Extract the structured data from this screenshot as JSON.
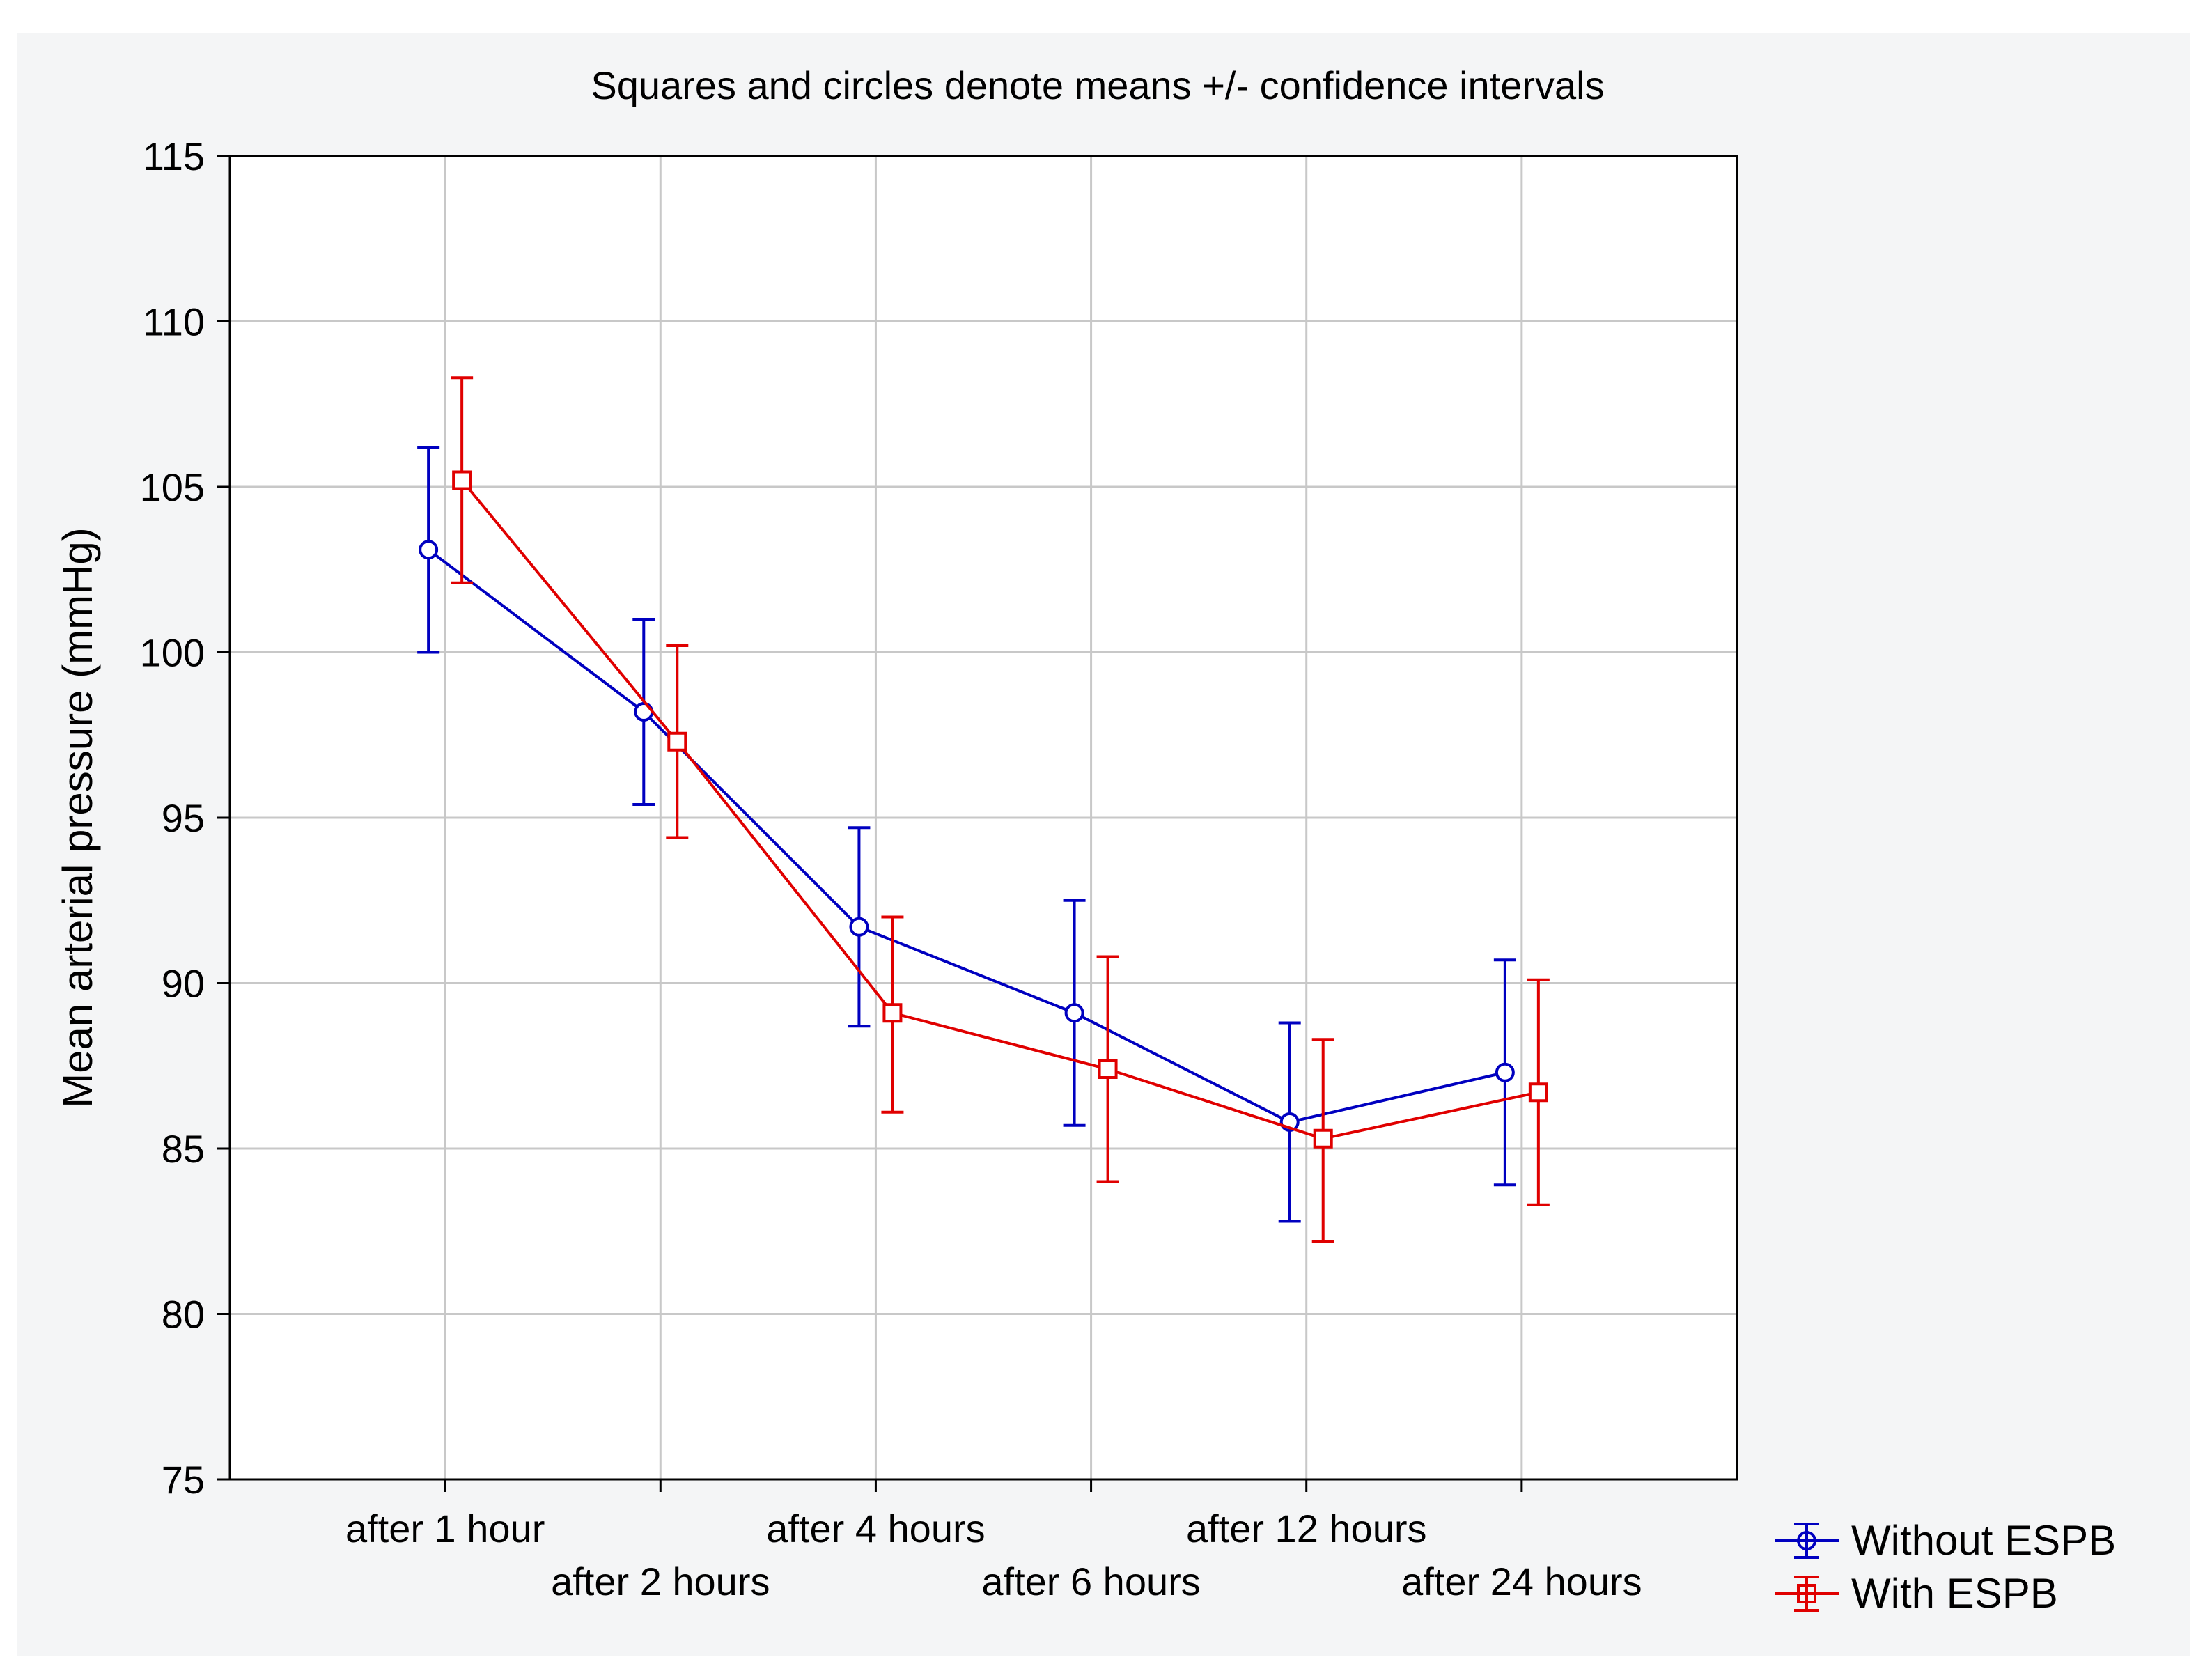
{
  "chart_data": {
    "type": "line",
    "title": "Squares and circles denote means +/- confidence intervals",
    "xlabel": "",
    "ylabel": "Mean arterial  pressure (mmHg)",
    "ylim": [
      75,
      115
    ],
    "yticks": [
      75,
      80,
      85,
      90,
      95,
      100,
      105,
      110,
      115
    ],
    "grid": true,
    "legend_position": "bottom-right",
    "categories": [
      "after 1 hour",
      "after 2 hours",
      "after 4 hours",
      "after 6 hours",
      "after 12 hours",
      "after 24 hours"
    ],
    "series": [
      {
        "name": "Without ESPB",
        "color": "#0000c0",
        "marker": "circle",
        "values": [
          103.1,
          98.2,
          91.7,
          89.1,
          85.8,
          87.3
        ],
        "ci_lower": [
          100.0,
          95.4,
          88.7,
          85.7,
          82.8,
          83.9
        ],
        "ci_upper": [
          106.2,
          101.0,
          94.7,
          92.5,
          88.8,
          90.7
        ]
      },
      {
        "name": "With ESPB",
        "color": "#e00000",
        "marker": "square",
        "values": [
          105.2,
          97.3,
          89.1,
          87.4,
          85.3,
          86.7
        ],
        "ci_lower": [
          102.1,
          94.4,
          86.1,
          84.0,
          82.2,
          83.3
        ],
        "ci_upper": [
          108.3,
          100.2,
          92.0,
          90.8,
          88.3,
          90.1
        ]
      }
    ]
  }
}
